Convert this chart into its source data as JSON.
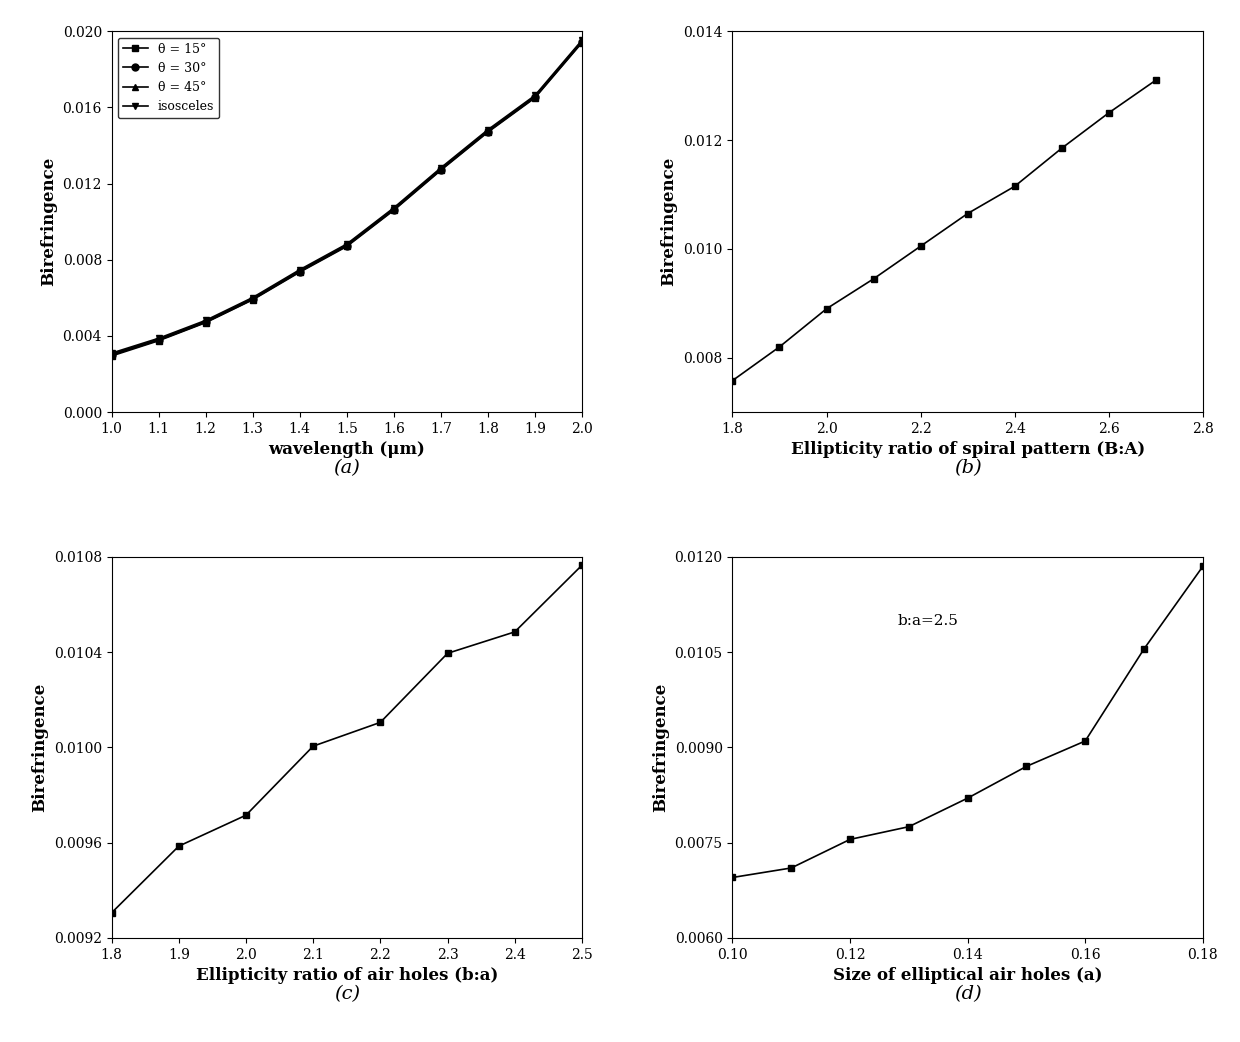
{
  "panel_a": {
    "title": "(a)",
    "xlabel": "wavelength (μm)",
    "ylabel": "Birefringence",
    "xlim": [
      1.0,
      2.0
    ],
    "ylim": [
      0.0,
      0.02
    ],
    "yticks": [
      0.0,
      0.004,
      0.008,
      0.012,
      0.016,
      0.02
    ],
    "xticks": [
      1.0,
      1.1,
      1.2,
      1.3,
      1.4,
      1.5,
      1.6,
      1.7,
      1.8,
      1.9,
      2.0
    ],
    "series": [
      {
        "label": "θ = 15°",
        "marker": "s",
        "x": [
          1.0,
          1.1,
          1.2,
          1.3,
          1.4,
          1.5,
          1.6,
          1.7,
          1.8,
          1.9,
          2.0
        ],
        "y": [
          0.00295,
          0.00375,
          0.0047,
          0.0059,
          0.00735,
          0.0087,
          0.0106,
          0.0127,
          0.0147,
          0.0165,
          0.0194
        ]
      },
      {
        "label": "θ = 30°",
        "marker": "o",
        "x": [
          1.0,
          1.1,
          1.2,
          1.3,
          1.4,
          1.5,
          1.6,
          1.7,
          1.8,
          1.9,
          2.0
        ],
        "y": [
          0.003,
          0.00378,
          0.00472,
          0.00592,
          0.00738,
          0.00873,
          0.01063,
          0.01273,
          0.01473,
          0.01653,
          0.01943
        ]
      },
      {
        "label": "θ = 45°",
        "marker": "^",
        "x": [
          1.0,
          1.1,
          1.2,
          1.3,
          1.4,
          1.5,
          1.6,
          1.7,
          1.8,
          1.9,
          2.0
        ],
        "y": [
          0.00305,
          0.00383,
          0.00477,
          0.00597,
          0.00743,
          0.00878,
          0.01068,
          0.01278,
          0.01478,
          0.01658,
          0.01948
        ]
      },
      {
        "label": "isosceles",
        "marker": "v",
        "x": [
          1.0,
          1.1,
          1.2,
          1.3,
          1.4,
          1.5,
          1.6,
          1.7,
          1.8,
          1.9,
          2.0
        ],
        "y": [
          0.0031,
          0.00388,
          0.00482,
          0.00602,
          0.00748,
          0.00883,
          0.01073,
          0.01283,
          0.01483,
          0.01663,
          0.01953
        ]
      }
    ]
  },
  "panel_b": {
    "title": "(b)",
    "xlabel": "Ellipticity ratio of spiral pattern (B:A)",
    "ylabel": "Birefringence",
    "xlim": [
      1.8,
      2.8
    ],
    "ylim": [
      0.007,
      0.014
    ],
    "yticks": [
      0.008,
      0.01,
      0.012,
      0.014
    ],
    "xticks": [
      1.8,
      2.0,
      2.2,
      2.4,
      2.6,
      2.8
    ],
    "x": [
      1.8,
      1.9,
      2.0,
      2.1,
      2.2,
      2.3,
      2.4,
      2.5,
      2.6,
      2.7
    ],
    "y": [
      0.00758,
      0.0082,
      0.0089,
      0.00945,
      0.01005,
      0.01065,
      0.01115,
      0.01185,
      0.0125,
      0.0131
    ]
  },
  "panel_c": {
    "title": "(c)",
    "xlabel": "Ellipticity ratio of air holes (b:a)",
    "ylabel": "Birefringence",
    "xlim": [
      1.8,
      2.5
    ],
    "ylim": [
      0.0092,
      0.0108
    ],
    "yticks": [
      0.0092,
      0.0096,
      0.01,
      0.0104,
      0.0108
    ],
    "xticks": [
      1.8,
      1.9,
      2.0,
      2.1,
      2.2,
      2.3,
      2.4,
      2.5
    ],
    "x": [
      1.8,
      1.9,
      2.0,
      2.1,
      2.2,
      2.3,
      2.4,
      2.5
    ],
    "y": [
      0.009305,
      0.009585,
      0.009715,
      0.010005,
      0.010105,
      0.010395,
      0.010485,
      0.010765
    ]
  },
  "panel_d": {
    "title": "(d)",
    "xlabel": "Size of elliptical air holes (a)",
    "ylabel": "Birefringence",
    "xlim": [
      0.1,
      0.18
    ],
    "ylim": [
      0.006,
      0.012
    ],
    "yticks": [
      0.006,
      0.0075,
      0.009,
      0.0105,
      0.012
    ],
    "xticks": [
      0.1,
      0.12,
      0.14,
      0.16,
      0.18
    ],
    "annotation": "b:a=2.5",
    "x": [
      0.1,
      0.11,
      0.12,
      0.13,
      0.14,
      0.15,
      0.16,
      0.17,
      0.18
    ],
    "y": [
      0.00695,
      0.0071,
      0.00755,
      0.00775,
      0.0082,
      0.0087,
      0.0091,
      0.01055,
      0.01185
    ]
  },
  "line_color": "#000000",
  "marker_color": "#000000",
  "background_color": "#ffffff",
  "font_size_label": 12,
  "font_size_tick": 10,
  "font_size_panel_label": 14
}
